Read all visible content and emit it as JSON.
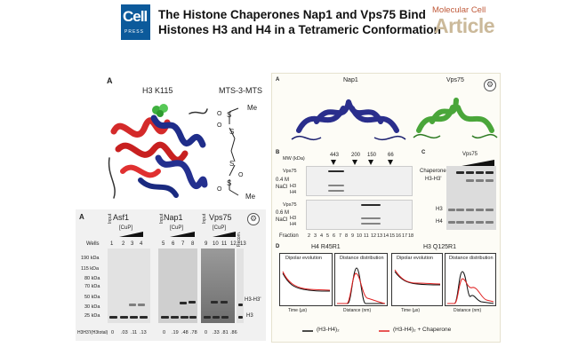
{
  "header": {
    "logo_main": "Cell",
    "logo_sub": "PRESS",
    "title_line1": "The Histone Chaperones Nap1 and Vps75 Bind",
    "title_line2": "Histones H3 and H4 in a Tetrameric Conformation",
    "journal": "Molecular Cell",
    "article_type": "Article"
  },
  "figure_top_left": {
    "panel_letter": "A",
    "structure_label": "H3 K115",
    "mts_label": "MTS-3-MTS",
    "chem": {
      "me1": "Me",
      "o1": "O",
      "s1": "S",
      "o2": "O",
      "s2": "S",
      "s3": "S",
      "o3": "O",
      "s4": "S",
      "o4": "O",
      "me2": "Me"
    }
  },
  "figure_bottom_left": {
    "panel_letter": "A",
    "group_labels": [
      "Asf1",
      "Nap1",
      "Vps75"
    ],
    "input_label": "Input",
    "cup_label": "[CuP]",
    "recomb_label": "Recom.",
    "wells_label": "Wells",
    "lane_numbers": [
      "1",
      "2",
      "3",
      "4",
      "5",
      "6",
      "7",
      "8",
      "9",
      "10",
      "11",
      "12",
      "13"
    ],
    "mw_markers": [
      "190 kDa",
      "115 kDa",
      "80 kDa",
      "70 kDa",
      "50 kDa",
      "30 kDa",
      "25 kDa"
    ],
    "band_labels": [
      "H3-H3'",
      "H3"
    ],
    "ratio_label": "H3H3'/(H3total)",
    "ratio_values": [
      "0",
      ".03",
      ".11",
      ".13",
      "0",
      ".19",
      ".48",
      ".78",
      "0",
      ".33",
      ".81",
      ".86"
    ]
  },
  "figure_right": {
    "panel_a_letter": "A",
    "nap1_label": "Nap1",
    "vps75_label": "Vps75",
    "panel_b_letter": "B",
    "mw_label": "MW (kDa)",
    "mw_values": [
      "443",
      "200",
      "150",
      "66"
    ],
    "row_labels": {
      "vps75_top": "Vps75",
      "salt_top": "0.4 M",
      "nacl_top": "NaCl",
      "h3_top": "H3",
      "h4_top": "H4",
      "vps75_bottom": "Vps75",
      "salt_bottom": "0.6 M",
      "nacl_bottom": "NaCl",
      "h3_bottom": "H3",
      "h4_bottom": "H4"
    },
    "fraction_label": "Fraction",
    "fractions": [
      "2",
      "3",
      "4",
      "5",
      "6",
      "7",
      "8",
      "9",
      "10",
      "11",
      "12",
      "13",
      "14",
      "15",
      "16",
      "17",
      "18"
    ],
    "panel_c_letter": "C",
    "panel_c_title": "Vps75",
    "panel_c_labels": [
      "Chaperone",
      "H3-H3'",
      "H3",
      "H4"
    ],
    "panel_d_letter": "D",
    "d_titles": [
      "H4 R45R1",
      "H3 Q125R1"
    ],
    "d_sub": [
      "Dipolar evolution",
      "Distance distribution"
    ],
    "d_xlabels": [
      "Time (µs)",
      "Distance (nm)"
    ],
    "d_ylabels": [
      "Normalized Intensity",
      "Normalized P(r)"
    ],
    "legend": [
      "(H3-H4)₂",
      "(H3-H4)₂ + Chaperone"
    ],
    "colors": {
      "series1": "#111111",
      "series2": "#e02020"
    }
  }
}
